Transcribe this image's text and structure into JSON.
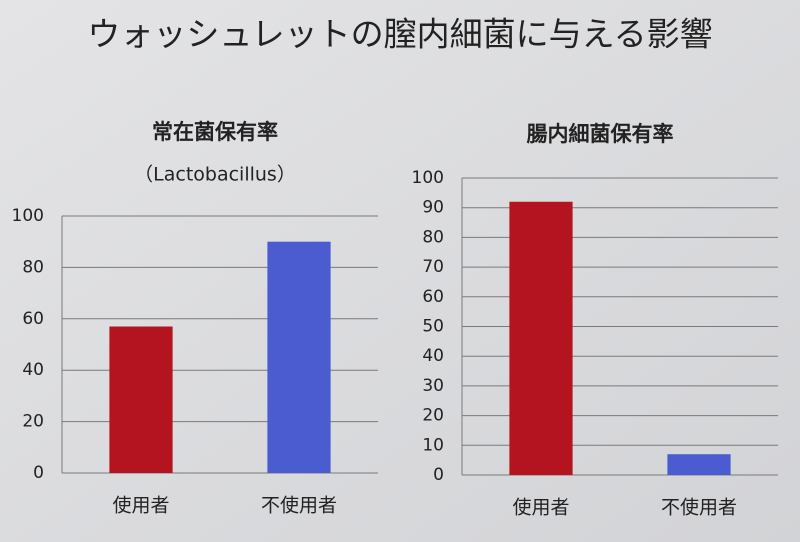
{
  "title": "ウォッシュレットの膣内細菌に与える影響",
  "chart_data": [
    {
      "type": "bar",
      "title": "常在菌保有率",
      "subtitle": "（Lactobacillus）",
      "categories": [
        "使用者",
        "不使用者"
      ],
      "values": [
        57,
        90
      ],
      "colors": [
        "#b3141f",
        "#4b5bd0"
      ],
      "ylim": [
        0,
        100
      ],
      "yticks": [
        0,
        20,
        40,
        60,
        80,
        100
      ],
      "grid": true
    },
    {
      "type": "bar",
      "title": "腸内細菌保有率",
      "categories": [
        "使用者",
        "不使用者"
      ],
      "values": [
        92,
        7
      ],
      "colors": [
        "#b3141f",
        "#4b5bd0"
      ],
      "ylim": [
        0,
        100
      ],
      "yticks": [
        0,
        10,
        20,
        30,
        40,
        50,
        60,
        70,
        80,
        90,
        100
      ],
      "grid": true
    }
  ]
}
